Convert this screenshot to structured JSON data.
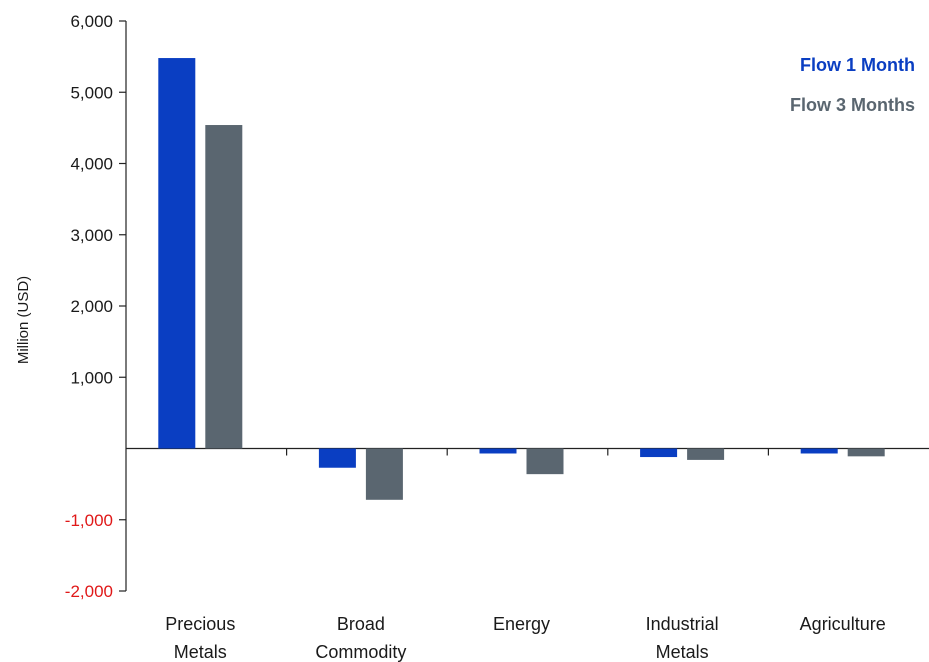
{
  "chart_data": {
    "type": "bar",
    "categories": [
      [
        "Precious",
        "Metals"
      ],
      [
        "Broad",
        "Commodity"
      ],
      [
        "Energy"
      ],
      [
        "Industrial",
        "Metals"
      ],
      [
        "Agriculture"
      ]
    ],
    "series": [
      {
        "name": "Flow 1 Month",
        "color": "#0a3ec2",
        "values": [
          5480,
          -270,
          -70,
          -120,
          -70
        ]
      },
      {
        "name": "Flow 3 Months",
        "color": "#5a6670",
        "values": [
          4540,
          -720,
          -360,
          -160,
          -110
        ]
      }
    ],
    "title": "",
    "xlabel": "",
    "ylabel": "Million (USD)",
    "ylim": [
      -2000,
      6000
    ],
    "yticks": [
      {
        "value": 6000,
        "label": "6,000"
      },
      {
        "value": 5000,
        "label": "5,000"
      },
      {
        "value": 4000,
        "label": "4,000"
      },
      {
        "value": 3000,
        "label": "3,000"
      },
      {
        "value": 2000,
        "label": "2,000"
      },
      {
        "value": 1000,
        "label": "1,000"
      },
      {
        "value": -1000,
        "label": "-1,000"
      },
      {
        "value": -2000,
        "label": "-2,000"
      }
    ],
    "positive_tick_color": "#1a1a1a",
    "negative_tick_color": "#e01818",
    "axis_color": "#222222",
    "grid": false,
    "legend": "top-right"
  }
}
